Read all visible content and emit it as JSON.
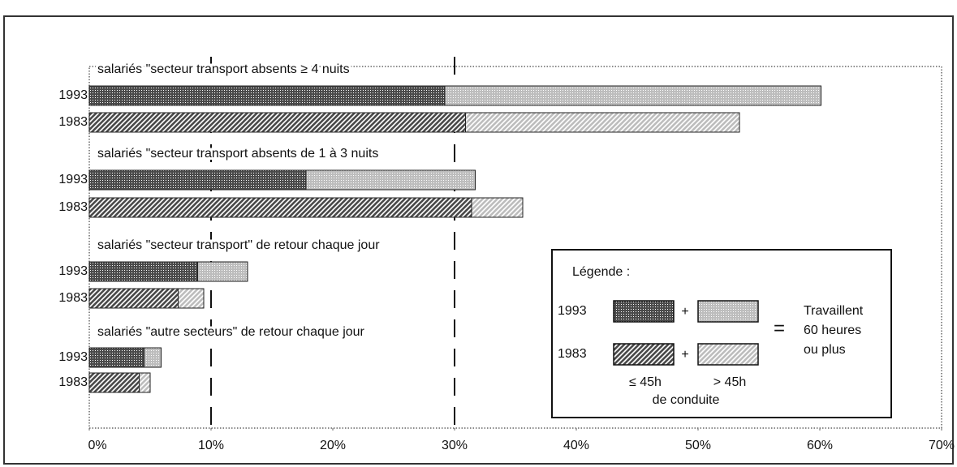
{
  "chart_data": {
    "type": "stacked-bar-horizontal",
    "categories": [
      "1993",
      "1983",
      "1993",
      "1983",
      "1993",
      "1983",
      "1993",
      "1983"
    ],
    "patterns": [
      "dots",
      "hatch",
      "dots",
      "hatch",
      "dots",
      "hatch",
      "dots",
      "hatch"
    ],
    "groups": [
      {
        "title": "salariés \"secteur transport absents ≥ 4 nuits"
      },
      {
        "title": "salariés \"secteur transport absents de 1 à 3 nuits"
      },
      {
        "title": "salariés \"secteur transport\" de retour chaque jour"
      },
      {
        "title": "salariés \"autre secteurs\" de retour chaque jour"
      }
    ],
    "series": [
      {
        "name": "≤ 45h",
        "color": "#4a4a4a",
        "values": [
          29.2,
          30.9,
          17.8,
          31.4,
          8.9,
          7.3,
          4.5,
          4.1
        ]
      },
      {
        "name": "> 45h",
        "color": "#bdbdbd",
        "values": [
          30.9,
          22.5,
          13.9,
          4.2,
          4.1,
          2.1,
          1.4,
          0.9
        ]
      }
    ],
    "xlim": [
      0,
      70
    ],
    "xticks": [
      {
        "value": 0,
        "label": "0%"
      },
      {
        "value": 10,
        "label": "10%"
      },
      {
        "value": 20,
        "label": "20%"
      },
      {
        "value": 30,
        "label": "30%"
      },
      {
        "value": 40,
        "label": "40%"
      },
      {
        "value": 50,
        "label": "50%"
      },
      {
        "value": 60,
        "label": "60%"
      },
      {
        "value": 70,
        "label": "70%"
      }
    ],
    "gridlines": [
      10,
      30
    ],
    "legend": {
      "title": "Légende :",
      "rows": [
        "1993",
        "1983"
      ],
      "plus": "+",
      "equals": "=",
      "result": [
        "Travaillent",
        "60 heures",
        "ou plus"
      ],
      "caption": "de conduite"
    }
  }
}
